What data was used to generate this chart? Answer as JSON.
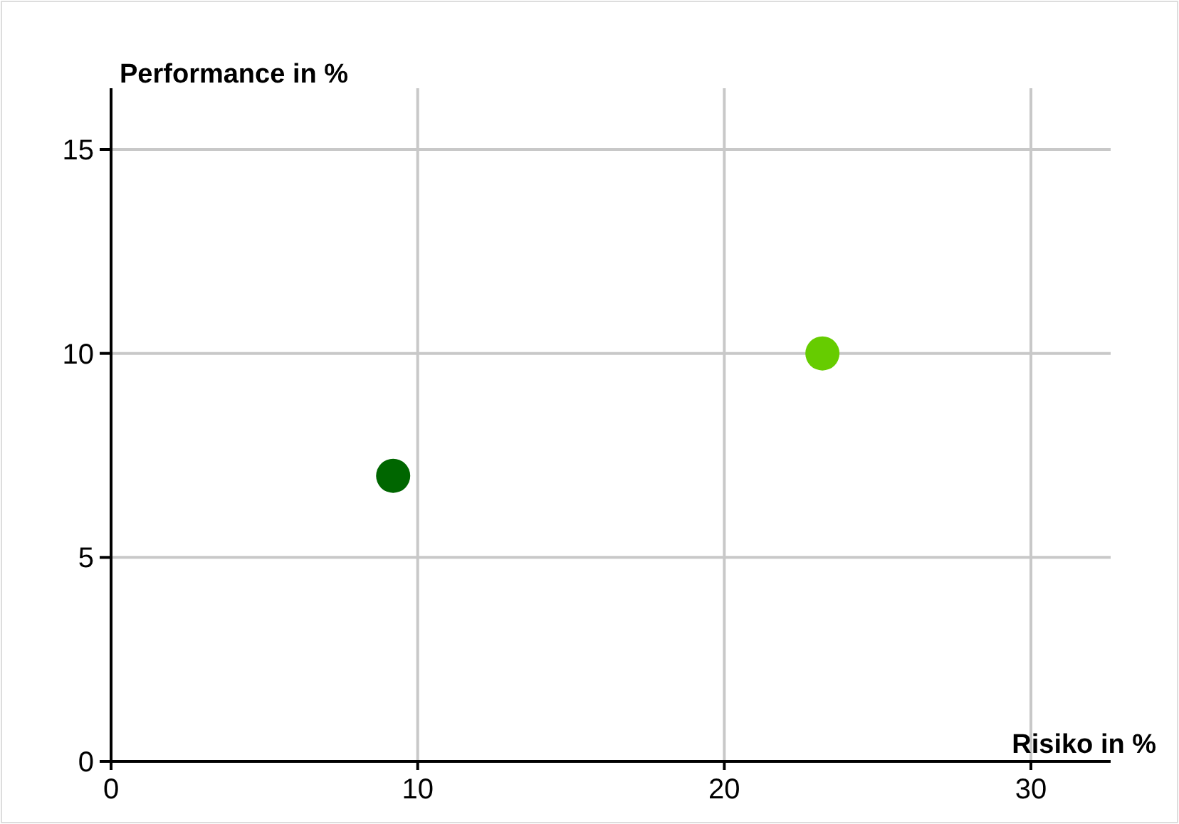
{
  "chart_data": {
    "type": "scatter",
    "xlabel": "Risiko in %",
    "ylabel": "Performance in %",
    "x": [
      9.2,
      23.2
    ],
    "series": [
      {
        "values": [
          7,
          10
        ],
        "colors": [
          "#006600",
          "#66cc00"
        ]
      }
    ],
    "xlim": [
      0,
      32.6
    ],
    "ylim": [
      0,
      16.5
    ],
    "xticks": [
      0,
      10,
      20,
      30
    ],
    "yticks": [
      0,
      5,
      10,
      15
    ],
    "grid": true,
    "marker": "circle"
  }
}
